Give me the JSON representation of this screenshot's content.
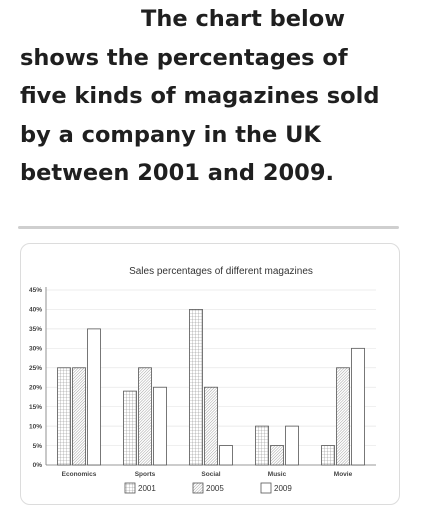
{
  "heading": {
    "lines": [
      "The chart below",
      "shows the percentages of",
      "five kinds of magazines sold",
      "by a company in the UK",
      "between 2001 and 2009."
    ]
  },
  "chart_data": {
    "type": "bar",
    "title": "Sales percentages of different magazines",
    "xlabel": "",
    "ylabel": "",
    "categories": [
      "Economics",
      "Sports",
      "Social",
      "Music",
      "Movie"
    ],
    "series": [
      {
        "name": "2001",
        "values": [
          25,
          19,
          40,
          10,
          5
        ]
      },
      {
        "name": "2005",
        "values": [
          25,
          25,
          20,
          5,
          25
        ]
      },
      {
        "name": "2009",
        "values": [
          35,
          20,
          5,
          10,
          30
        ]
      }
    ],
    "ylim": [
      0,
      45
    ],
    "yticks": [
      0,
      5,
      10,
      15,
      20,
      25,
      30,
      35,
      40,
      45
    ],
    "tick_suffix": "%",
    "grid": true,
    "legend_position": "bottom",
    "series_fill": [
      "grid",
      "hatched",
      "plain"
    ],
    "colors": {
      "stroke": "#555555",
      "grid": "#e6e6e6",
      "hatch": "#8a8a8a"
    }
  }
}
